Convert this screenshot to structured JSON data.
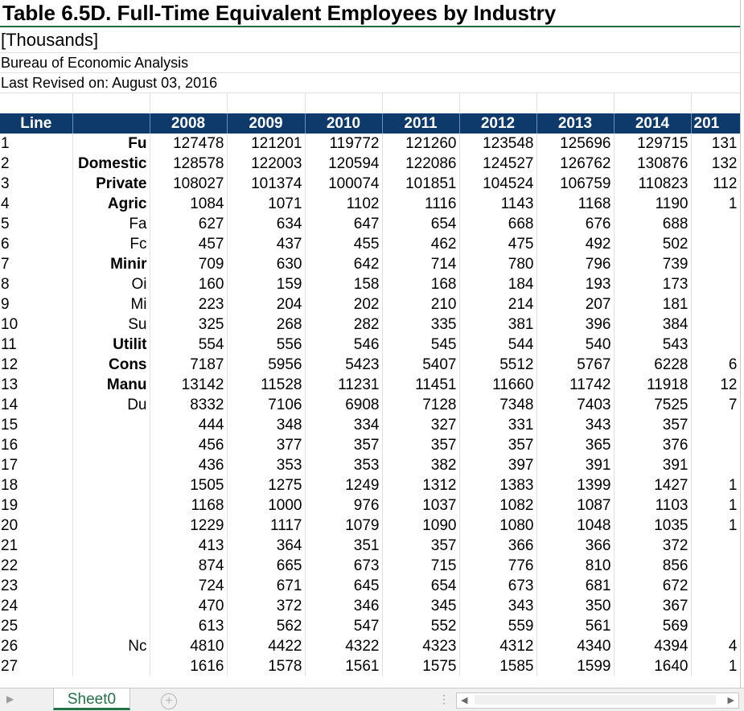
{
  "header": {
    "title": "Table 6.5D. Full-Time Equivalent Employees by Industry",
    "units": "[Thousands]",
    "source": "Bureau of Economic Analysis",
    "revised": "Last Revised on: August 03, 2016"
  },
  "table": {
    "columns": [
      "Line",
      "",
      "2008",
      "2009",
      "2010",
      "2011",
      "2012",
      "2013",
      "2014",
      "201"
    ],
    "rows": [
      {
        "line": "1",
        "label": "Fu",
        "bold": true,
        "v": [
          "127478",
          "121201",
          "119772",
          "121260",
          "123548",
          "125696",
          "129715",
          "131"
        ]
      },
      {
        "line": "2",
        "label": "Domestic",
        "bold": true,
        "v": [
          "128578",
          "122003",
          "120594",
          "122086",
          "124527",
          "126762",
          "130876",
          "132"
        ]
      },
      {
        "line": "3",
        "label": "Private",
        "bold": true,
        "v": [
          "108027",
          "101374",
          "100074",
          "101851",
          "104524",
          "106759",
          "110823",
          "112"
        ]
      },
      {
        "line": "4",
        "label": "Agric",
        "bold": true,
        "v": [
          "1084",
          "1071",
          "1102",
          "1116",
          "1143",
          "1168",
          "1190",
          "1"
        ]
      },
      {
        "line": "5",
        "label": "Fa",
        "bold": false,
        "v": [
          "627",
          "634",
          "647",
          "654",
          "668",
          "676",
          "688",
          ""
        ]
      },
      {
        "line": "6",
        "label": "Fc",
        "bold": false,
        "v": [
          "457",
          "437",
          "455",
          "462",
          "475",
          "492",
          "502",
          ""
        ]
      },
      {
        "line": "7",
        "label": "Minir",
        "bold": true,
        "v": [
          "709",
          "630",
          "642",
          "714",
          "780",
          "796",
          "739",
          ""
        ]
      },
      {
        "line": "8",
        "label": "Oi",
        "bold": false,
        "v": [
          "160",
          "159",
          "158",
          "168",
          "184",
          "193",
          "173",
          ""
        ]
      },
      {
        "line": "9",
        "label": "Mi",
        "bold": false,
        "v": [
          "223",
          "204",
          "202",
          "210",
          "214",
          "207",
          "181",
          ""
        ]
      },
      {
        "line": "10",
        "label": "Su",
        "bold": false,
        "v": [
          "325",
          "268",
          "282",
          "335",
          "381",
          "396",
          "384",
          ""
        ]
      },
      {
        "line": "11",
        "label": "Utilit",
        "bold": true,
        "v": [
          "554",
          "556",
          "546",
          "545",
          "544",
          "540",
          "543",
          ""
        ]
      },
      {
        "line": "12",
        "label": "Cons",
        "bold": true,
        "v": [
          "7187",
          "5956",
          "5423",
          "5407",
          "5512",
          "5767",
          "6228",
          "6"
        ]
      },
      {
        "line": "13",
        "label": "Manu",
        "bold": true,
        "v": [
          "13142",
          "11528",
          "11231",
          "11451",
          "11660",
          "11742",
          "11918",
          "12"
        ]
      },
      {
        "line": "14",
        "label": "Du",
        "bold": false,
        "v": [
          "8332",
          "7106",
          "6908",
          "7128",
          "7348",
          "7403",
          "7525",
          "7"
        ]
      },
      {
        "line": "15",
        "label": "",
        "bold": false,
        "v": [
          "444",
          "348",
          "334",
          "327",
          "331",
          "343",
          "357",
          ""
        ]
      },
      {
        "line": "16",
        "label": "",
        "bold": false,
        "v": [
          "456",
          "377",
          "357",
          "357",
          "357",
          "365",
          "376",
          ""
        ]
      },
      {
        "line": "17",
        "label": "",
        "bold": false,
        "v": [
          "436",
          "353",
          "353",
          "382",
          "397",
          "391",
          "391",
          ""
        ]
      },
      {
        "line": "18",
        "label": "",
        "bold": false,
        "v": [
          "1505",
          "1275",
          "1249",
          "1312",
          "1383",
          "1399",
          "1427",
          "1"
        ]
      },
      {
        "line": "19",
        "label": "",
        "bold": false,
        "v": [
          "1168",
          "1000",
          "976",
          "1037",
          "1082",
          "1087",
          "1103",
          "1"
        ]
      },
      {
        "line": "20",
        "label": "",
        "bold": false,
        "v": [
          "1229",
          "1117",
          "1079",
          "1090",
          "1080",
          "1048",
          "1035",
          "1"
        ]
      },
      {
        "line": "21",
        "label": "",
        "bold": false,
        "v": [
          "413",
          "364",
          "351",
          "357",
          "366",
          "366",
          "372",
          ""
        ]
      },
      {
        "line": "22",
        "label": "",
        "bold": false,
        "v": [
          "874",
          "665",
          "673",
          "715",
          "776",
          "810",
          "856",
          ""
        ]
      },
      {
        "line": "23",
        "label": "",
        "bold": false,
        "v": [
          "724",
          "671",
          "645",
          "654",
          "673",
          "681",
          "672",
          ""
        ]
      },
      {
        "line": "24",
        "label": "",
        "bold": false,
        "v": [
          "470",
          "372",
          "346",
          "345",
          "343",
          "350",
          "367",
          ""
        ]
      },
      {
        "line": "25",
        "label": "",
        "bold": false,
        "v": [
          "613",
          "562",
          "547",
          "552",
          "559",
          "561",
          "569",
          ""
        ]
      },
      {
        "line": "26",
        "label": "Nc",
        "bold": false,
        "v": [
          "4810",
          "4422",
          "4322",
          "4323",
          "4312",
          "4340",
          "4394",
          "4"
        ]
      },
      {
        "line": "27",
        "label": "",
        "bold": false,
        "v": [
          "1616",
          "1578",
          "1561",
          "1575",
          "1585",
          "1599",
          "1640",
          "1"
        ]
      }
    ]
  },
  "sheet_tab": "Sheet0",
  "add_sheet_symbol": "+",
  "colors": {
    "header_bg": "#0e3a6b",
    "tab_green": "#217346"
  }
}
